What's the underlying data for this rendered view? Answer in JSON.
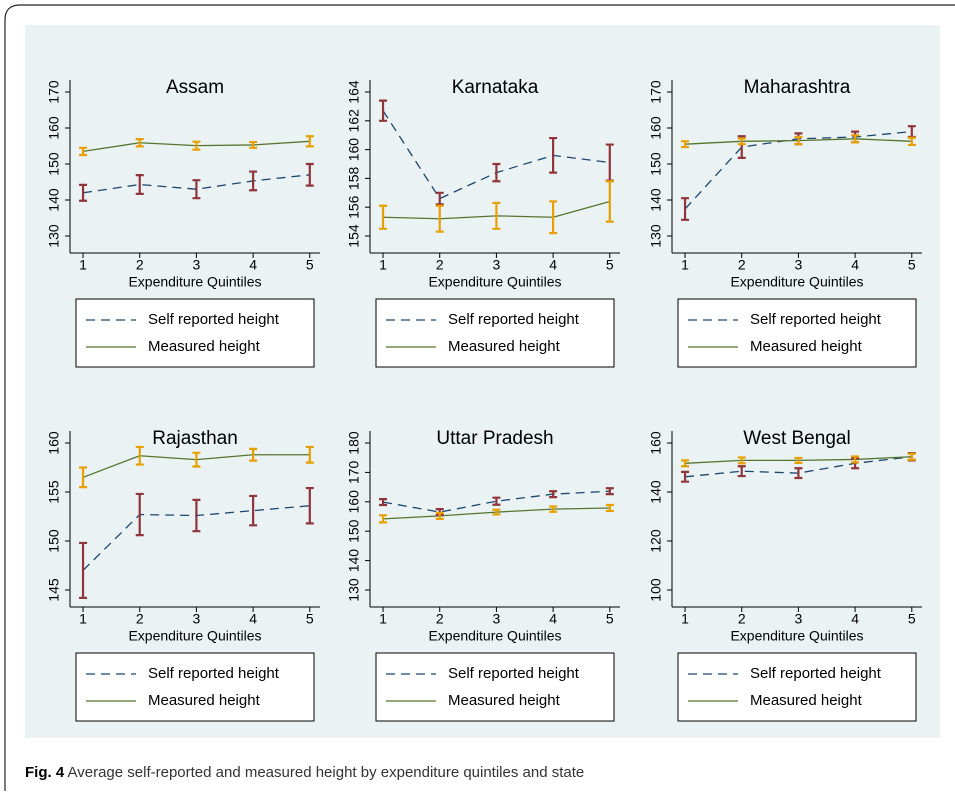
{
  "chart_data": [
    {
      "type": "line",
      "title": "Assam",
      "x_label": "Expenditure Quintiles",
      "x": [
        1,
        2,
        3,
        4,
        5
      ],
      "xticks": [
        1,
        2,
        3,
        4,
        5
      ],
      "xlim": [
        0.77,
        5.18
      ],
      "ylim": [
        130,
        170
      ],
      "yticks": [
        130,
        140,
        150,
        160,
        170
      ],
      "legend": "bottom",
      "series": [
        {
          "name": "Self reported height",
          "color": "#1a476f",
          "line_style": "dashed",
          "error_color": "#90353b",
          "values": [
            142,
            144.3,
            143,
            145.3,
            147
          ],
          "errors": [
            2.2,
            2.6,
            2.5,
            2.6,
            3
          ]
        },
        {
          "name": "Measured height",
          "color": "#55752f",
          "line_style": "solid",
          "error_color": "#e8a000",
          "values": [
            153.5,
            155.9,
            155.1,
            155.3,
            156.3
          ],
          "errors": [
            1,
            1,
            1.1,
            0.8,
            1.4
          ]
        }
      ]
    },
    {
      "type": "line",
      "title": "Karnataka",
      "x_label": "Expenditure Quintiles",
      "x": [
        1,
        2,
        3,
        4,
        5
      ],
      "xticks": [
        1,
        2,
        3,
        4,
        5
      ],
      "xlim": [
        0.77,
        5.18
      ],
      "ylim": [
        154,
        164
      ],
      "yticks": [
        154,
        156,
        158,
        160,
        162,
        164
      ],
      "legend": "bottom",
      "series": [
        {
          "name": "Self reported height",
          "color": "#1a476f",
          "line_style": "dashed",
          "error_color": "#90353b",
          "values": [
            162.7,
            156.6,
            158.4,
            159.6,
            159.1
          ],
          "errors": [
            0.7,
            0.4,
            0.6,
            1.2,
            1.25
          ]
        },
        {
          "name": "Measured height",
          "color": "#55752f",
          "line_style": "solid",
          "error_color": "#e8a000",
          "values": [
            155.3,
            155.2,
            155.4,
            155.3,
            156.4
          ],
          "errors": [
            0.8,
            0.9,
            0.9,
            1.1,
            1.4
          ]
        }
      ]
    },
    {
      "type": "line",
      "title": "Maharashtra",
      "x_label": "Expenditure Quintiles",
      "x": [
        1,
        2,
        3,
        4,
        5
      ],
      "xticks": [
        1,
        2,
        3,
        4,
        5
      ],
      "xlim": [
        0.77,
        5.18
      ],
      "ylim": [
        130,
        170
      ],
      "yticks": [
        130,
        140,
        150,
        160,
        170
      ],
      "legend": "bottom",
      "series": [
        {
          "name": "Self reported height",
          "color": "#1a476f",
          "line_style": "dashed",
          "error_color": "#90353b",
          "values": [
            137.5,
            154.7,
            157,
            157.5,
            159
          ],
          "errors": [
            3,
            3,
            1.5,
            1.5,
            1.5
          ]
        },
        {
          "name": "Measured height",
          "color": "#55752f",
          "line_style": "solid",
          "error_color": "#e8a000",
          "values": [
            155.5,
            156.3,
            156.5,
            157,
            156.3
          ],
          "errors": [
            0.8,
            0.8,
            1,
            1,
            1
          ]
        }
      ]
    },
    {
      "type": "line",
      "title": "Rajasthan",
      "x_label": "Expenditure Quintiles",
      "x": [
        1,
        2,
        3,
        4,
        5
      ],
      "xticks": [
        1,
        2,
        3,
        4,
        5
      ],
      "xlim": [
        0.77,
        5.18
      ],
      "ylim": [
        145,
        160
      ],
      "yticks": [
        145,
        150,
        155,
        160
      ],
      "legend": "bottom",
      "series": [
        {
          "name": "Self reported height",
          "color": "#1a476f",
          "line_style": "dashed",
          "error_color": "#90353b",
          "values": [
            147,
            152.7,
            152.6,
            153.1,
            153.6
          ],
          "errors": [
            2.8,
            2.1,
            1.6,
            1.5,
            1.8
          ]
        },
        {
          "name": "Measured height",
          "color": "#55752f",
          "line_style": "solid",
          "error_color": "#e8a000",
          "values": [
            156.5,
            158.7,
            158.3,
            158.8,
            158.8
          ],
          "errors": [
            1,
            0.9,
            0.7,
            0.6,
            0.8
          ]
        }
      ]
    },
    {
      "type": "line",
      "title": "Uttar Pradesh",
      "x_label": "Expenditure Quintiles",
      "x": [
        1,
        2,
        3,
        4,
        5
      ],
      "xticks": [
        1,
        2,
        3,
        4,
        5
      ],
      "xlim": [
        0.77,
        5.18
      ],
      "ylim": [
        130,
        180
      ],
      "yticks": [
        130,
        140,
        150,
        160,
        170,
        180
      ],
      "legend": "bottom",
      "series": [
        {
          "name": "Self reported height",
          "color": "#1a476f",
          "line_style": "dashed",
          "error_color": "#90353b",
          "values": [
            159.9,
            156.5,
            160.2,
            162.6,
            163.6
          ],
          "errors": [
            1,
            1,
            1.2,
            1,
            1
          ]
        },
        {
          "name": "Measured height",
          "color": "#55752f",
          "line_style": "solid",
          "error_color": "#e8a000",
          "values": [
            154.2,
            155.2,
            156.5,
            157.5,
            157.9
          ],
          "errors": [
            1.2,
            1,
            0.8,
            0.9,
            1
          ]
        }
      ]
    },
    {
      "type": "line",
      "title": "West Bengal",
      "x_label": "Expenditure Quintiles",
      "x": [
        1,
        2,
        3,
        4,
        5
      ],
      "xticks": [
        1,
        2,
        3,
        4,
        5
      ],
      "xlim": [
        0.77,
        5.18
      ],
      "ylim": [
        100,
        160
      ],
      "yticks": [
        100,
        120,
        140,
        160
      ],
      "legend": "bottom",
      "series": [
        {
          "name": "Self reported height",
          "color": "#1a476f",
          "line_style": "dashed",
          "error_color": "#90353b",
          "values": [
            146.2,
            148.5,
            147.7,
            151.7,
            154.4
          ],
          "errors": [
            2,
            2,
            2,
            2,
            1.5
          ]
        },
        {
          "name": "Measured height",
          "color": "#55752f",
          "line_style": "solid",
          "error_color": "#e8a000",
          "values": [
            151.7,
            152.9,
            152.9,
            153.3,
            154.4
          ],
          "errors": [
            1.2,
            1.2,
            1,
            1.2,
            1.2
          ]
        }
      ]
    }
  ],
  "figure_caption": {
    "label": "Fig. 4",
    "text": "Average self-reported and measured height by expenditure quintiles and state"
  }
}
